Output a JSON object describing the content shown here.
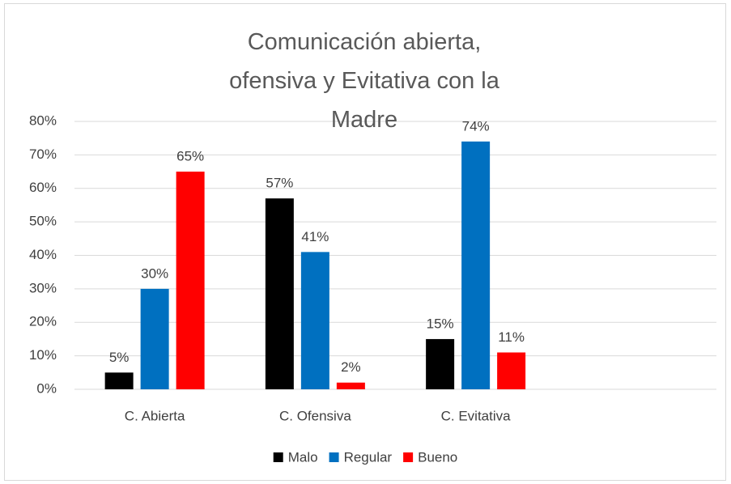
{
  "chart_data": {
    "type": "bar",
    "title": "Comunicación abierta, ofensiva y Evitativa con la Madre",
    "categories": [
      "C. Abierta",
      "C. Ofensiva",
      "C. Evitativa",
      null
    ],
    "series": [
      {
        "name": "Malo",
        "color": "#000000",
        "values": [
          5,
          57,
          15,
          null
        ],
        "value_labels": [
          "5%",
          "57%",
          "15%",
          null
        ]
      },
      {
        "name": "Regular",
        "color": "#0070c0",
        "values": [
          30,
          41,
          74,
          null
        ],
        "value_labels": [
          "30%",
          "41%",
          "74%",
          null
        ]
      },
      {
        "name": "Bueno",
        "color": "#ff0000",
        "values": [
          65,
          2,
          11,
          null
        ],
        "value_labels": [
          "65%",
          "2%",
          "11%",
          null
        ]
      }
    ],
    "ylim": [
      0,
      80
    ],
    "yticks": [
      {
        "value": 0,
        "label": "0%"
      },
      {
        "value": 10,
        "label": "10%"
      },
      {
        "value": 20,
        "label": "20%"
      },
      {
        "value": 30,
        "label": "30%"
      },
      {
        "value": 40,
        "label": "40%"
      },
      {
        "value": 50,
        "label": "50%"
      },
      {
        "value": 60,
        "label": "60%"
      },
      {
        "value": 70,
        "label": "70%"
      },
      {
        "value": 80,
        "label": "80%"
      }
    ],
    "grid": true,
    "legend": "bottom"
  }
}
